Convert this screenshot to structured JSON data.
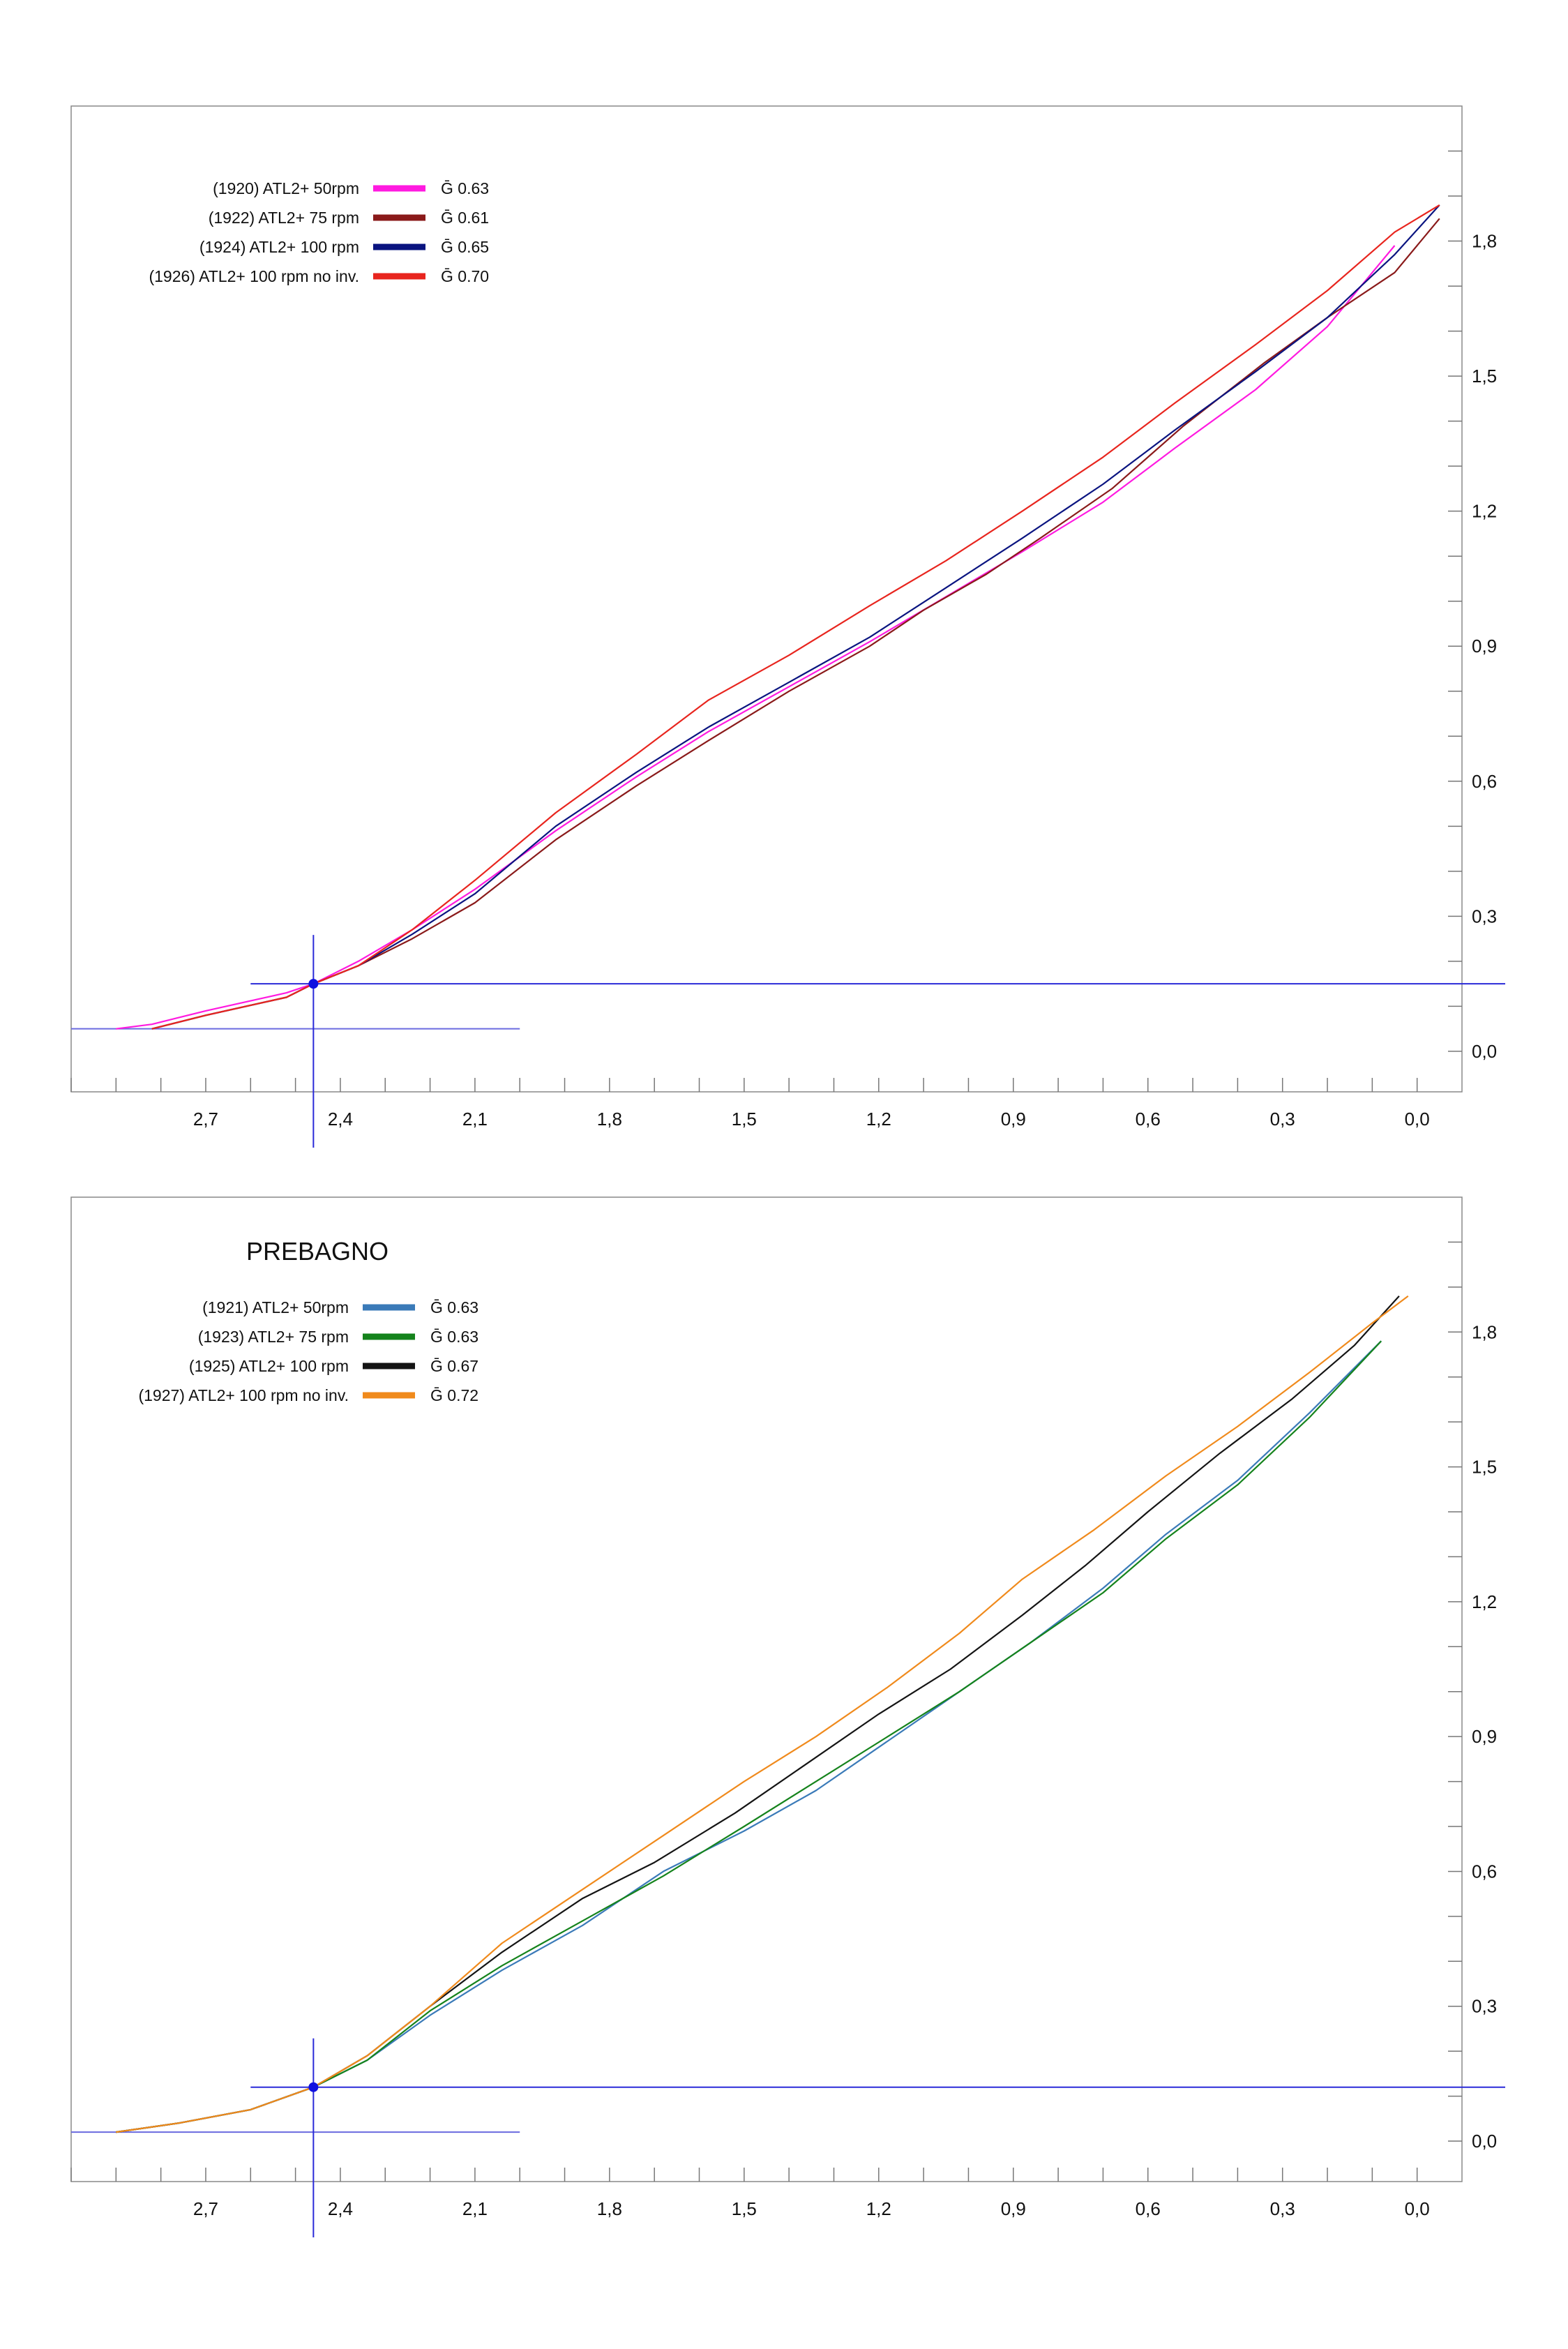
{
  "chart_data": [
    {
      "type": "line",
      "title": "",
      "xlabel": "",
      "ylabel": "",
      "x_axis": {
        "reversed": true,
        "range": [
          3.0,
          -0.1
        ],
        "ticks": [
          "2,7",
          "2,4",
          "2,1",
          "1,8",
          "1,5",
          "1,2",
          "0,9",
          "0,6",
          "0,3",
          "0,0"
        ]
      },
      "y_axis": {
        "position": "right",
        "range": [
          -0.09,
          2.1
        ],
        "ticks": [
          "0,0",
          "0,3",
          "0,6",
          "0,9",
          "1,2",
          "1,5",
          "1,8"
        ]
      },
      "grid": false,
      "legend_position": "top-left",
      "crosshair": {
        "x": 2.46,
        "y": 0.15,
        "baseline_y": 0.05
      },
      "series": [
        {
          "name": "(1920) ATL2+ 50rpm",
          "g_label": "Ḡ 0.63",
          "color": "#ff1ae0",
          "x": [
            2.9,
            2.82,
            2.7,
            2.52,
            2.46,
            2.36,
            2.24,
            2.1,
            1.92,
            1.74,
            1.58,
            1.4,
            1.22,
            1.05,
            0.88,
            0.7,
            0.54,
            0.36,
            0.2,
            0.05
          ],
          "y": [
            0.05,
            0.06,
            0.09,
            0.13,
            0.15,
            0.2,
            0.27,
            0.36,
            0.49,
            0.61,
            0.71,
            0.81,
            0.91,
            1.01,
            1.11,
            1.22,
            1.34,
            1.47,
            1.61,
            1.79
          ]
        },
        {
          "name": "(1922) ATL2+ 75 rpm",
          "g_label": "Ḡ 0.61",
          "color": "#8a1a1a",
          "x": [
            2.82,
            2.7,
            2.52,
            2.46,
            2.36,
            2.24,
            2.1,
            1.92,
            1.74,
            1.58,
            1.4,
            1.22,
            1.1,
            0.96,
            0.84,
            0.68,
            0.52,
            0.34,
            0.2,
            0.05,
            -0.05
          ],
          "y": [
            0.05,
            0.08,
            0.12,
            0.15,
            0.19,
            0.25,
            0.33,
            0.47,
            0.59,
            0.69,
            0.8,
            0.9,
            0.98,
            1.06,
            1.14,
            1.25,
            1.39,
            1.53,
            1.63,
            1.73,
            1.85
          ]
        },
        {
          "name": "(1924) ATL2+ 100 rpm",
          "g_label": "Ḡ 0.65",
          "color": "#0a1480",
          "x": [
            2.82,
            2.7,
            2.52,
            2.46,
            2.36,
            2.24,
            2.1,
            1.92,
            1.74,
            1.58,
            1.4,
            1.22,
            1.05,
            0.88,
            0.7,
            0.54,
            0.36,
            0.2,
            0.05,
            -0.05
          ],
          "y": [
            0.05,
            0.08,
            0.12,
            0.15,
            0.19,
            0.26,
            0.35,
            0.5,
            0.62,
            0.72,
            0.82,
            0.92,
            1.03,
            1.14,
            1.26,
            1.38,
            1.51,
            1.63,
            1.77,
            1.88
          ]
        },
        {
          "name": "(1926) ATL2+ 100 rpm no inv.",
          "g_label": "Ḡ 0.70",
          "color": "#e8251e",
          "x": [
            2.82,
            2.7,
            2.52,
            2.46,
            2.36,
            2.24,
            2.1,
            1.92,
            1.74,
            1.58,
            1.4,
            1.22,
            1.05,
            0.88,
            0.7,
            0.54,
            0.36,
            0.2,
            0.05,
            -0.05
          ],
          "y": [
            0.05,
            0.08,
            0.12,
            0.15,
            0.19,
            0.27,
            0.38,
            0.53,
            0.66,
            0.78,
            0.88,
            0.99,
            1.09,
            1.2,
            1.32,
            1.44,
            1.57,
            1.69,
            1.82,
            1.88
          ]
        }
      ]
    },
    {
      "type": "line",
      "title": "PREBAGNO",
      "xlabel": "",
      "ylabel": "",
      "x_axis": {
        "reversed": true,
        "range": [
          3.0,
          -0.1
        ],
        "ticks": [
          "2,7",
          "2,4",
          "2,1",
          "1,8",
          "1,5",
          "1,2",
          "0,9",
          "0,6",
          "0,3",
          "0,0"
        ]
      },
      "y_axis": {
        "position": "right",
        "range": [
          -0.09,
          2.1
        ],
        "ticks": [
          "0,0",
          "0,3",
          "0,6",
          "0,9",
          "1,2",
          "1,5",
          "1,8"
        ]
      },
      "grid": false,
      "legend_position": "top-left",
      "crosshair": {
        "x": 2.46,
        "y": 0.12,
        "baseline_y": 0.02
      },
      "series": [
        {
          "name": "(1921) ATL2+ 50rpm",
          "g_label": "Ḡ 0.63",
          "color": "#3a7ab8",
          "x": [
            2.9,
            2.76,
            2.6,
            2.46,
            2.34,
            2.2,
            2.04,
            1.86,
            1.68,
            1.5,
            1.34,
            1.18,
            1.02,
            0.86,
            0.7,
            0.56,
            0.4,
            0.24,
            0.08
          ],
          "y": [
            0.02,
            0.04,
            0.07,
            0.12,
            0.18,
            0.28,
            0.38,
            0.48,
            0.6,
            0.69,
            0.78,
            0.89,
            1.0,
            1.11,
            1.23,
            1.35,
            1.47,
            1.62,
            1.78
          ]
        },
        {
          "name": "(1923) ATL2+ 75 rpm",
          "g_label": "Ḡ 0.63",
          "color": "#15831c",
          "x": [
            2.9,
            2.76,
            2.6,
            2.46,
            2.34,
            2.2,
            2.04,
            1.86,
            1.68,
            1.5,
            1.34,
            1.18,
            1.02,
            0.86,
            0.7,
            0.56,
            0.4,
            0.24,
            0.08
          ],
          "y": [
            0.02,
            0.04,
            0.07,
            0.12,
            0.18,
            0.29,
            0.39,
            0.49,
            0.59,
            0.7,
            0.8,
            0.9,
            1.0,
            1.11,
            1.22,
            1.34,
            1.46,
            1.61,
            1.78
          ]
        },
        {
          "name": "(1925) ATL2+ 100 rpm",
          "g_label": "Ḡ 0.67",
          "color": "#141414",
          "x": [
            2.9,
            2.76,
            2.6,
            2.46,
            2.34,
            2.2,
            2.04,
            1.86,
            1.7,
            1.52,
            1.36,
            1.2,
            1.04,
            0.88,
            0.74,
            0.6,
            0.44,
            0.28,
            0.14,
            0.04
          ],
          "y": [
            0.02,
            0.04,
            0.07,
            0.12,
            0.19,
            0.3,
            0.42,
            0.54,
            0.62,
            0.73,
            0.84,
            0.95,
            1.05,
            1.17,
            1.28,
            1.4,
            1.53,
            1.65,
            1.77,
            1.88
          ]
        },
        {
          "name": "(1927) ATL2+ 100 rpm no inv.",
          "g_label": "Ḡ 0.72",
          "color": "#f08a1c",
          "x": [
            2.9,
            2.76,
            2.6,
            2.46,
            2.34,
            2.2,
            2.04,
            1.86,
            1.68,
            1.5,
            1.34,
            1.18,
            1.02,
            0.88,
            0.72,
            0.56,
            0.4,
            0.24,
            0.1,
            0.02
          ],
          "y": [
            0.02,
            0.04,
            0.07,
            0.12,
            0.19,
            0.3,
            0.44,
            0.56,
            0.68,
            0.8,
            0.9,
            1.01,
            1.13,
            1.25,
            1.36,
            1.48,
            1.59,
            1.71,
            1.82,
            1.88
          ]
        }
      ]
    }
  ]
}
